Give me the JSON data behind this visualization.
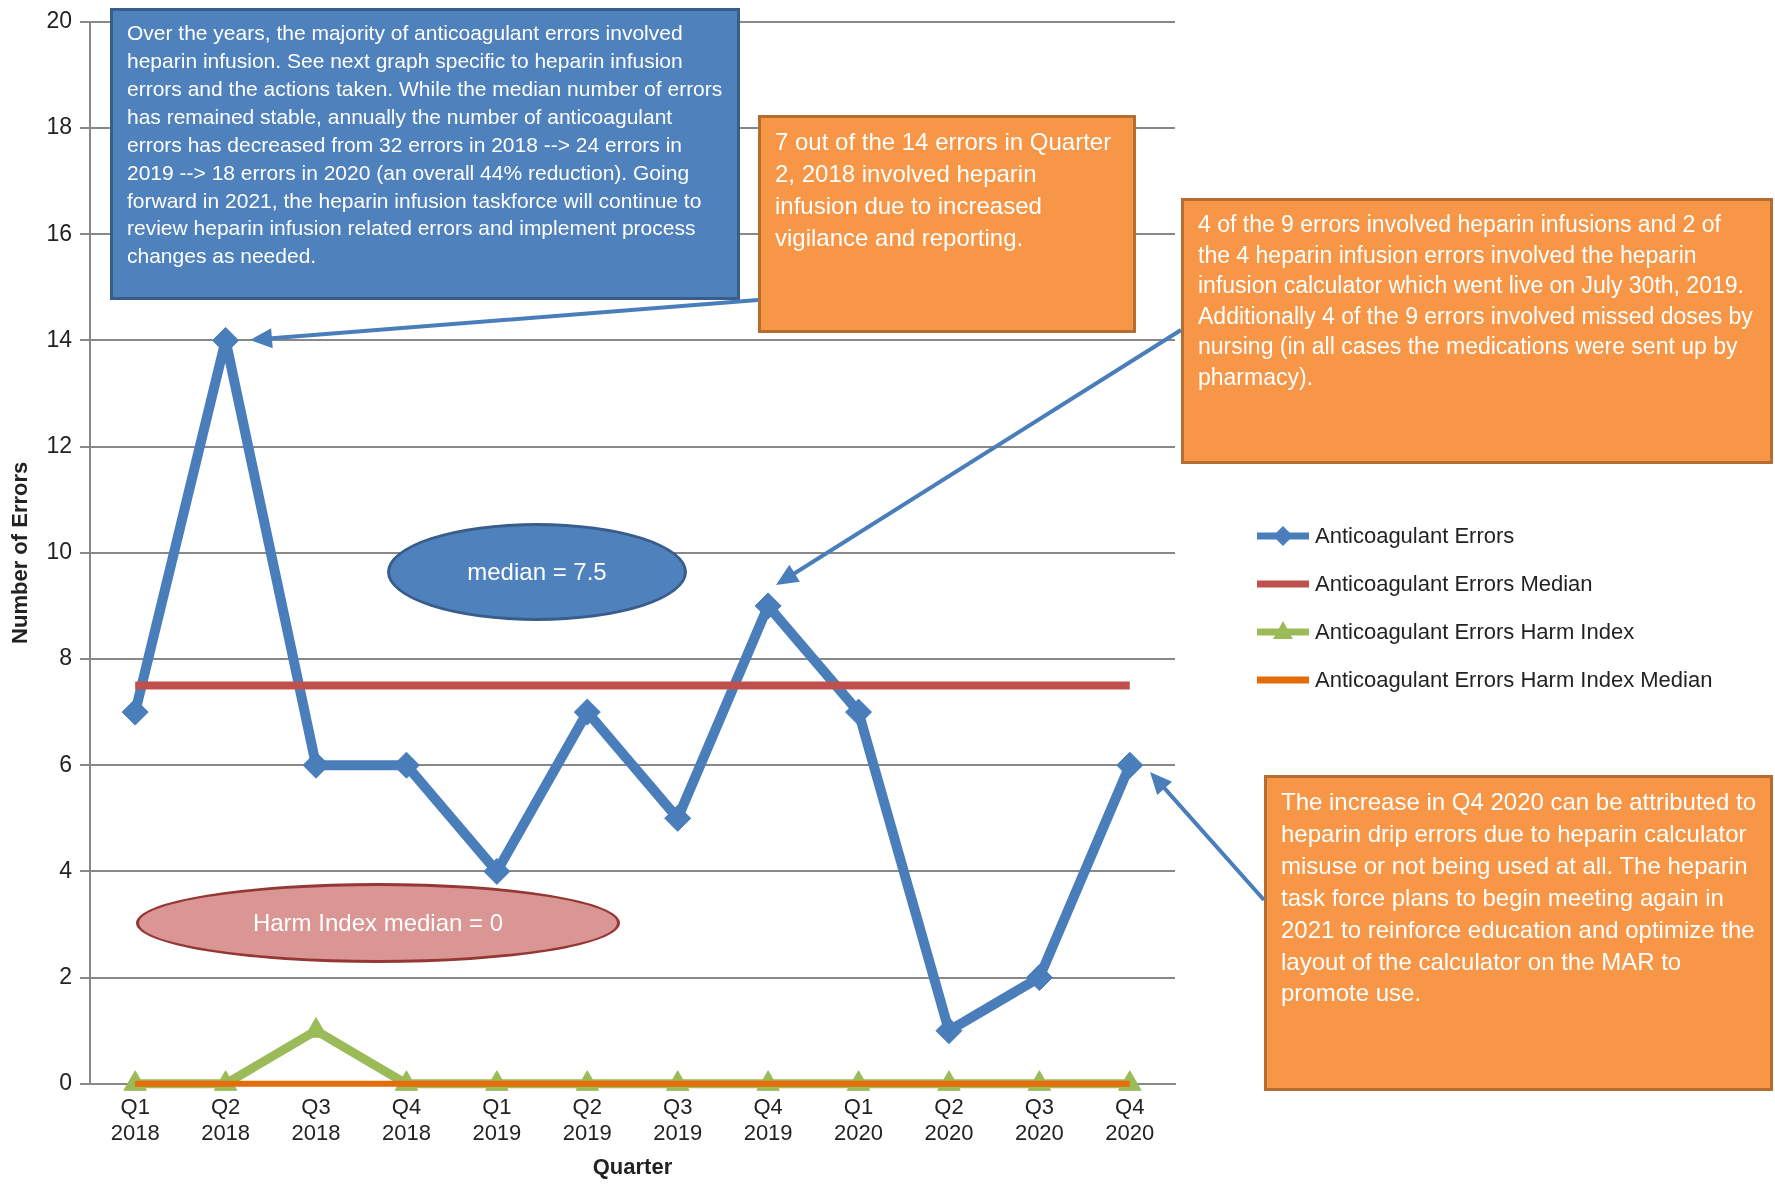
{
  "chart_data": {
    "type": "line",
    "xlabel": "Quarter",
    "ylabel": "Number of Errors",
    "categories": [
      "Q1 2018",
      "Q2 2018",
      "Q3 2018",
      "Q4 2018",
      "Q1 2019",
      "Q2 2019",
      "Q3 2019",
      "Q4 2019",
      "Q1 2020",
      "Q2 2020",
      "Q3 2020",
      "Q4 2020"
    ],
    "series": [
      {
        "name": "Anticoagulant Errors",
        "color": "#4a7ebb",
        "marker": "diamond",
        "values": [
          7,
          14,
          6,
          6,
          4,
          7,
          5,
          9,
          7,
          1,
          2,
          6
        ]
      },
      {
        "name": "Anticoagulant Errors Median",
        "color": "#c0504d",
        "marker": "none",
        "values": [
          7.5,
          7.5,
          7.5,
          7.5,
          7.5,
          7.5,
          7.5,
          7.5,
          7.5,
          7.5,
          7.5,
          7.5
        ]
      },
      {
        "name": "Anticoagulant Errors Harm Index",
        "color": "#9bbb59",
        "marker": "triangle",
        "values": [
          0,
          0,
          1,
          0,
          0,
          0,
          0,
          0,
          0,
          0,
          0,
          0
        ]
      },
      {
        "name": "Anticoagulant Errors Harm Index Median",
        "color": "#e46c0a",
        "marker": "none",
        "values": [
          0,
          0,
          0,
          0,
          0,
          0,
          0,
          0,
          0,
          0,
          0,
          0
        ]
      }
    ],
    "ylim": [
      0,
      20
    ],
    "yticks": [
      0,
      2,
      4,
      6,
      8,
      10,
      12,
      14,
      16,
      18,
      20
    ],
    "grid": "y",
    "legend": "right",
    "annotations": [
      "Over the years, the majority of anticoagulant errors involved heparin infusion. See next graph specific to heparin infusion errors and the actions taken. While the median number of errors has remained stable, annually the number of anticoagulant errors has decreased from 32 errors in 2018 --> 24 errors in 2019 --> 18 errors in 2020 (an overall 44% reduction).  Going forward in 2021, the heparin infusion taskforce will continue to review heparin infusion related errors and implement  process changes as needed.",
      "7 out of the 14 errors in Quarter 2, 2018 involved heparin infusion due to increased vigilance and reporting.",
      "4 of the 9 errors involved heparin infusions and 2 of the 4 heparin infusion errors involved the heparin infusion calculator which went live on July 30th, 2019. Additionally 4 of the 9 errors involved missed doses by nursing (in all cases the medications were sent up by pharmacy).",
      "The increase in Q4 2020 can be attributed to heparin drip errors due to heparin calculator misuse or not being used at all. The heparin task force plans to begin meeting again in 2021 to reinforce education and optimize the layout of the calculator on the MAR to promote use.",
      "median = 7.5",
      "Harm Index median = 0"
    ]
  }
}
